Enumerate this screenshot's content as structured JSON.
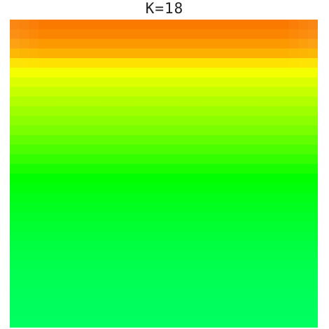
{
  "chart_data": {
    "type": "heatmap",
    "title": "K=18",
    "xlabel": "",
    "ylabel": "",
    "grid": false,
    "legend": "none",
    "rows": 32,
    "cols": 32,
    "row_gradient_colors": [
      "#fa7a00",
      "#fb8400",
      "#fc9800",
      "#fdb000",
      "#fee100",
      "#f4ff00",
      "#dbff00",
      "#c6ff00",
      "#b2ff00",
      "#9eff00",
      "#8cff00",
      "#79ff00",
      "#62ff00",
      "#4bff00",
      "#33ff00",
      "#18ff00",
      "#00ff00",
      "#00ff0b",
      "#00ff16",
      "#00ff1f",
      "#00ff29",
      "#00ff31",
      "#00ff39",
      "#00ff40",
      "#00ff46",
      "#00ff4c",
      "#00ff51",
      "#00ff55",
      "#00ff59",
      "#00ff5c",
      "#00ff5e",
      "#00ff60"
    ],
    "top_rows_edge_fade": 5
  }
}
